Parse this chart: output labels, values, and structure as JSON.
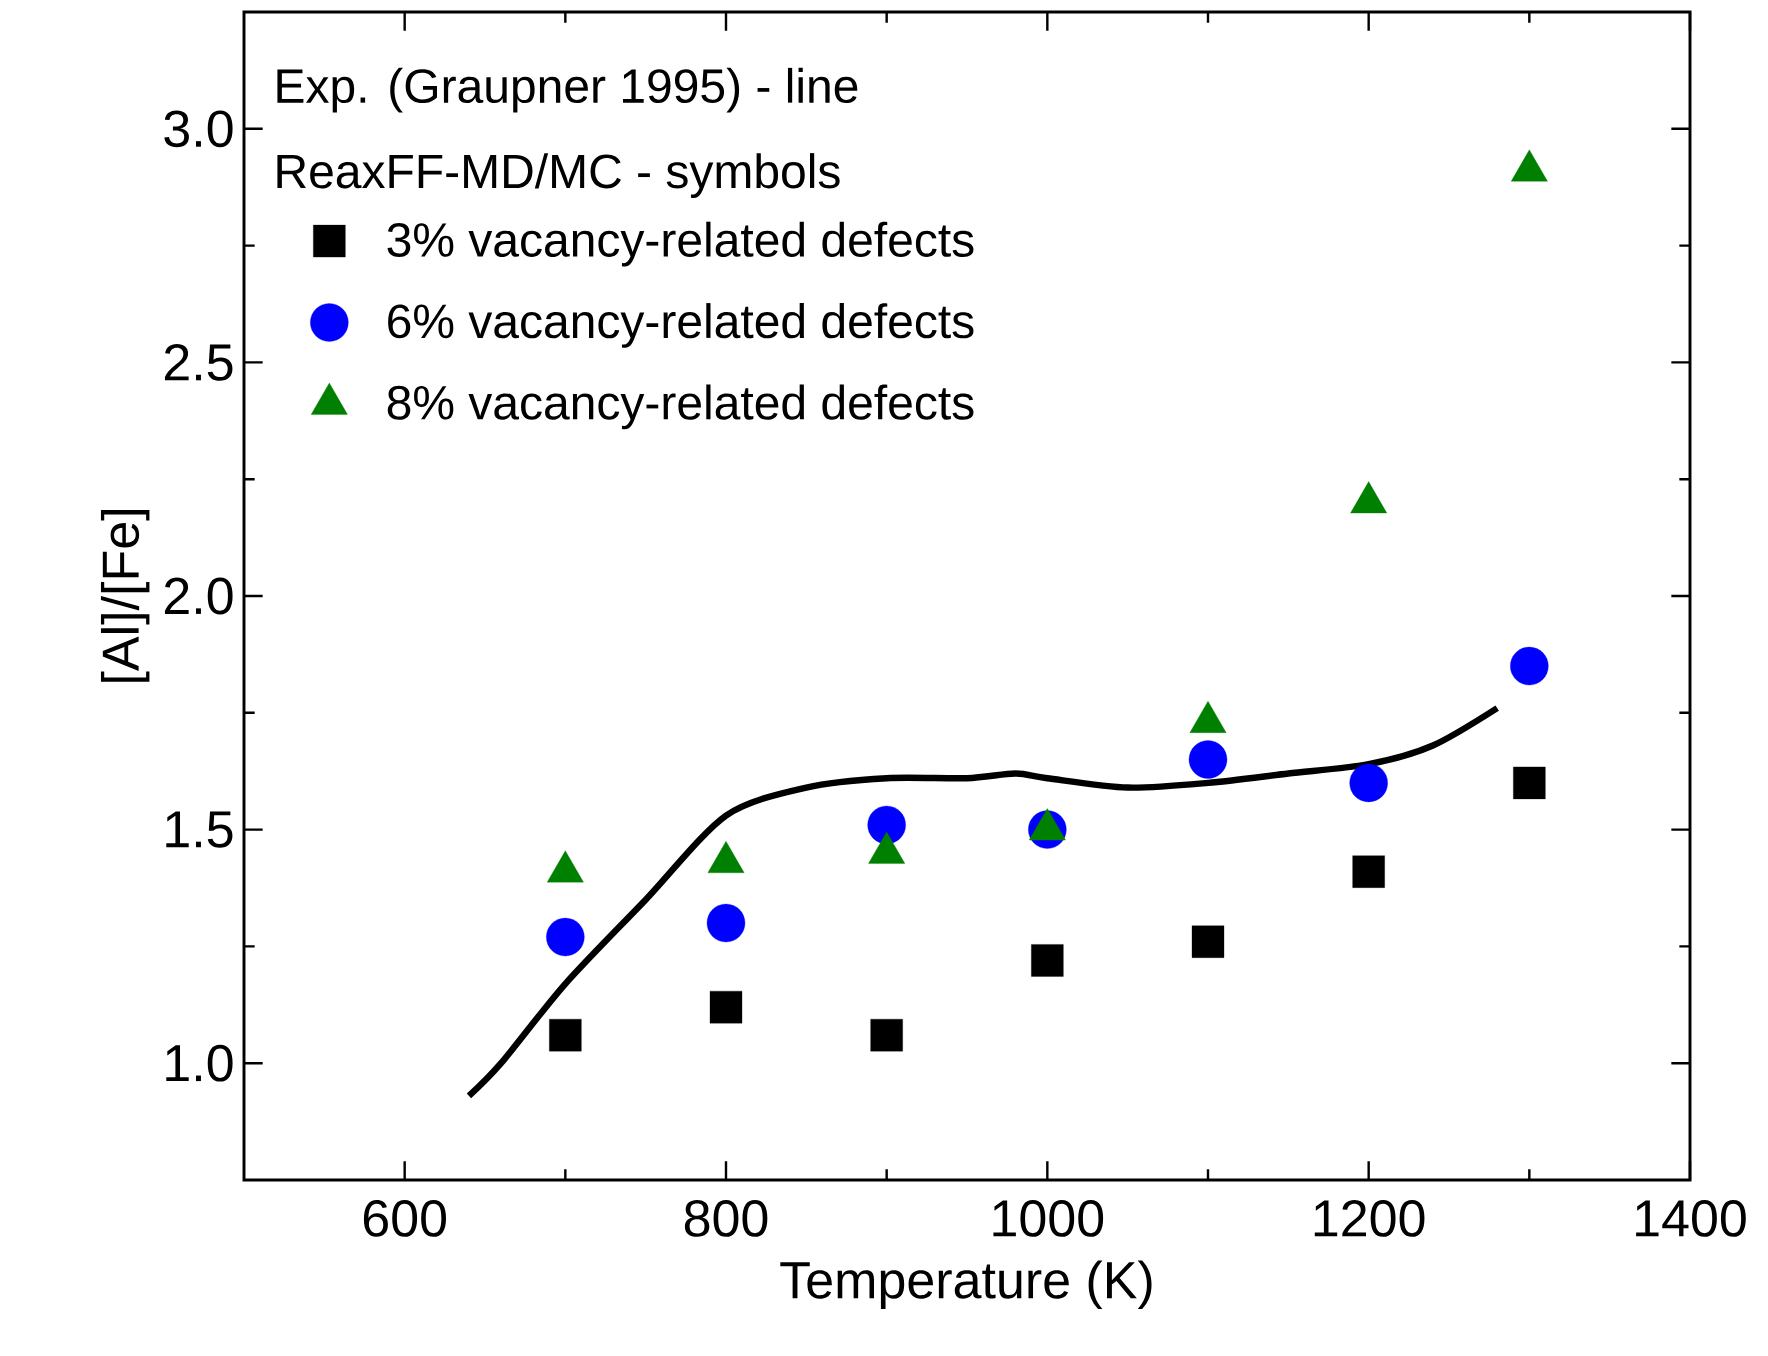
{
  "chart_data": {
    "type": "scatter",
    "xlabel": "Temperature (K)",
    "ylabel": "[Al]/[Fe]",
    "annotations": [
      "Exp. (Graupner 1995) - line",
      "ReaxFF-MD/MC - symbols"
    ],
    "xlim": [
      500,
      1400
    ],
    "xticks": [
      600,
      800,
      1000,
      1200,
      1400
    ],
    "ylim": [
      0.75,
      3.25
    ],
    "yticks": [
      {
        "value": 1.0,
        "label": "1.0"
      },
      {
        "value": 1.5,
        "label": "1.5"
      },
      {
        "value": 2.0,
        "label": "2.0"
      },
      {
        "value": 2.5,
        "label": "2.5"
      },
      {
        "value": 3.0,
        "label": "3.0"
      }
    ],
    "grid": false,
    "legend": "top left",
    "series": [
      {
        "type": "line",
        "color": "#000000",
        "marker": "none",
        "line_style": "solid",
        "x": [
          640,
          660,
          700,
          750,
          800,
          850,
          900,
          950,
          980,
          1000,
          1050,
          1100,
          1150,
          1200,
          1240,
          1280
        ],
        "values": [
          0.93,
          1.0,
          1.17,
          1.35,
          1.53,
          1.59,
          1.61,
          1.61,
          1.62,
          1.61,
          1.59,
          1.6,
          1.62,
          1.64,
          1.68,
          1.76
        ]
      },
      {
        "name": "3% vacancy-related defects",
        "color": "#000000",
        "marker": "square",
        "x": [
          700,
          800,
          900,
          1000,
          1100,
          1200,
          1300
        ],
        "values": [
          1.06,
          1.12,
          1.06,
          1.22,
          1.26,
          1.41,
          1.6
        ]
      },
      {
        "name": "6% vacancy-related defects",
        "color": "#0000ff",
        "marker": "circle",
        "x": [
          700,
          800,
          900,
          1000,
          1100,
          1200,
          1300
        ],
        "values": [
          1.27,
          1.3,
          1.51,
          1.5,
          1.65,
          1.6,
          1.85
        ]
      },
      {
        "name": "8% vacancy-related defects",
        "color": "#008000",
        "marker": "triangle",
        "x": [
          700,
          800,
          900,
          1000,
          1100,
          1200,
          1300
        ],
        "values": [
          1.41,
          1.43,
          1.45,
          1.5,
          1.73,
          2.2,
          2.91
        ]
      }
    ]
  }
}
